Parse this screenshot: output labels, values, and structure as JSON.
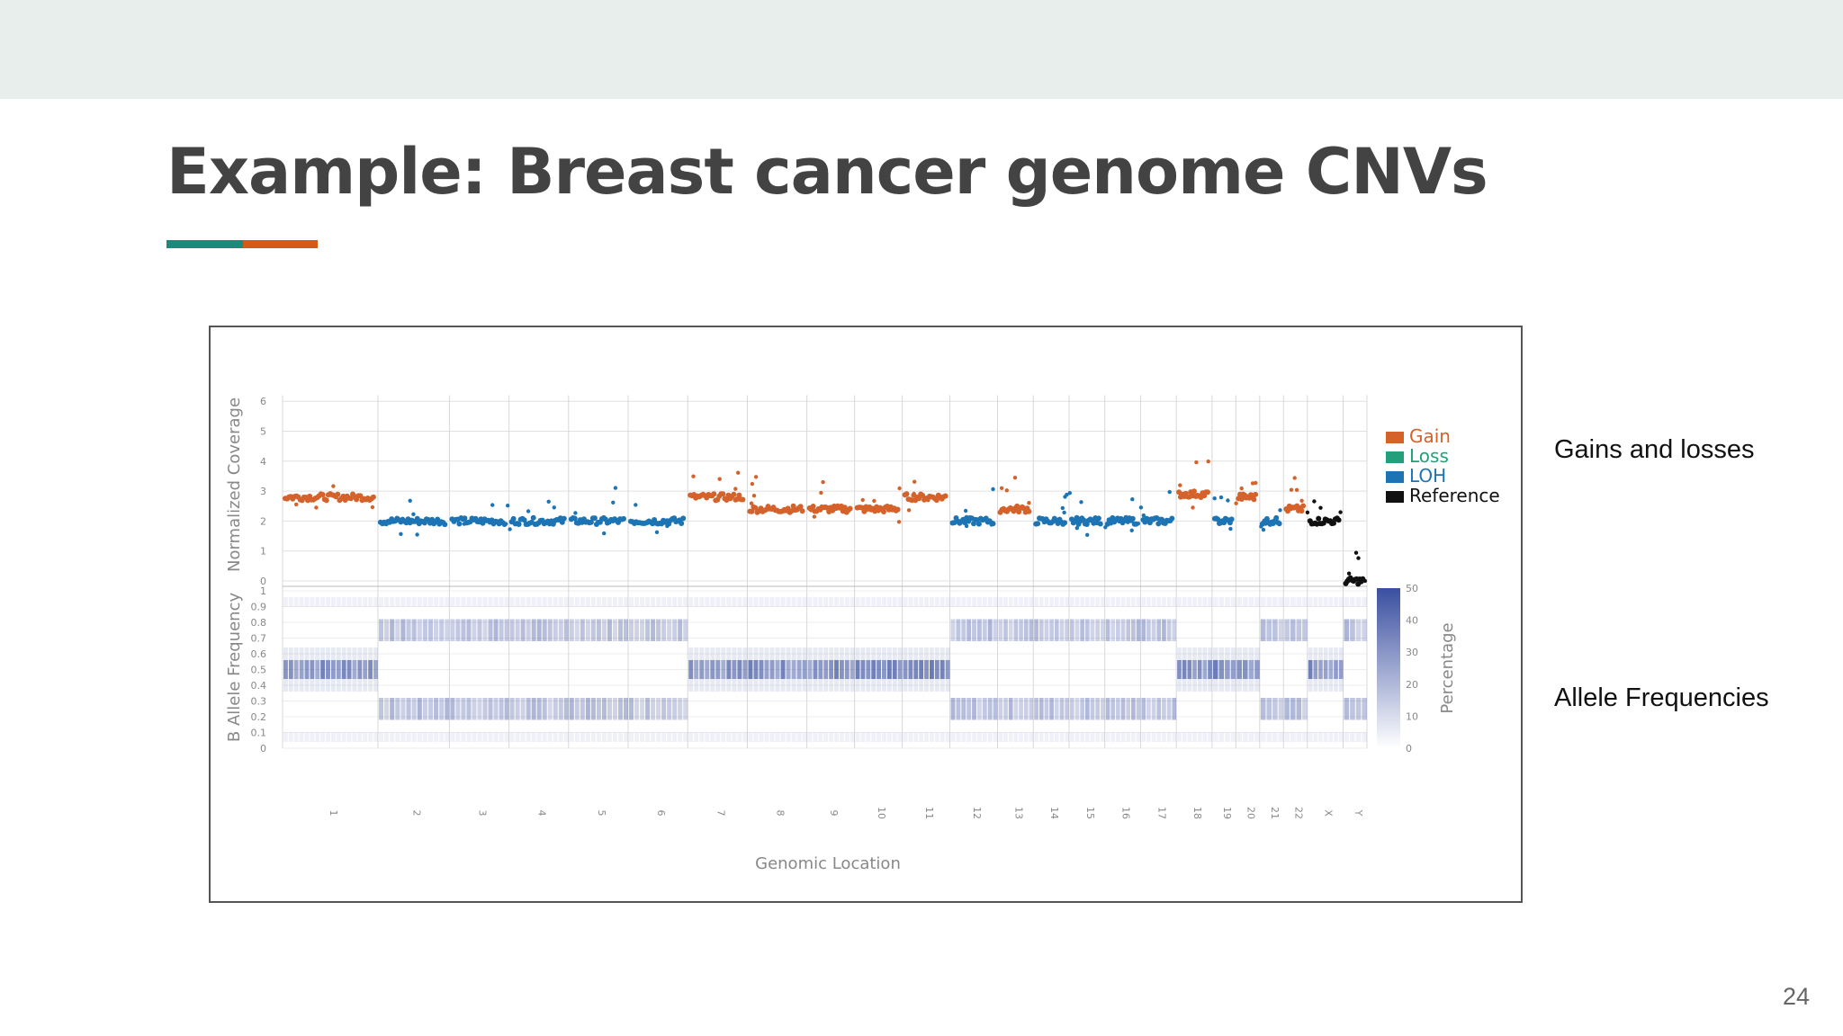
{
  "slide": {
    "title": "Example: Breast cancer genome CNVs",
    "page_number": "24",
    "side_labels": {
      "gains_losses": "Gains and losses",
      "allele_freq": "Allele Frequencies"
    },
    "accent_colors": [
      "#1b8a7a",
      "#d65a17"
    ]
  },
  "chart_data": [
    {
      "type": "scatter",
      "ylabel": "Normalized Coverage",
      "xlabel": "Genomic Location",
      "ylim": [
        0,
        6
      ],
      "yticks": [
        "0",
        "1",
        "2",
        "3",
        "4",
        "5",
        "6"
      ],
      "chromosomes": [
        "1",
        "2",
        "3",
        "4",
        "5",
        "6",
        "7",
        "8",
        "9",
        "10",
        "11",
        "12",
        "13",
        "14",
        "15",
        "16",
        "17",
        "18",
        "19",
        "20",
        "21",
        "22",
        "X",
        "Y"
      ],
      "legend": {
        "placement": "right",
        "entries": [
          {
            "name": "Gain",
            "color": "#d4622a"
          },
          {
            "name": "Loss",
            "color": "#22a07c"
          },
          {
            "name": "LOH",
            "color": "#1c74b4"
          },
          {
            "name": "Reference",
            "color": "#111111"
          }
        ]
      },
      "segments": [
        {
          "chrom": "1",
          "state": "Gain",
          "cn": 2.8
        },
        {
          "chrom": "2",
          "state": "LOH",
          "cn": 2.0
        },
        {
          "chrom": "3",
          "state": "LOH",
          "cn": 2.0
        },
        {
          "chrom": "4",
          "state": "LOH",
          "cn": 2.0
        },
        {
          "chrom": "5",
          "state": "LOH",
          "cn": 2.0
        },
        {
          "chrom": "6",
          "state": "LOH",
          "cn": 2.0
        },
        {
          "chrom": "7",
          "state": "Gain",
          "cn": 2.8
        },
        {
          "chrom": "8",
          "state": "Gain",
          "cn": 2.4
        },
        {
          "chrom": "9",
          "state": "Gain",
          "cn": 2.4
        },
        {
          "chrom": "10",
          "state": "Gain",
          "cn": 2.4
        },
        {
          "chrom": "11",
          "state": "Gain",
          "cn": 2.8
        },
        {
          "chrom": "12",
          "state": "LOH",
          "cn": 2.0
        },
        {
          "chrom": "13",
          "state": "Gain",
          "cn": 2.4
        },
        {
          "chrom": "14",
          "state": "LOH",
          "cn": 2.0
        },
        {
          "chrom": "15",
          "state": "LOH",
          "cn": 2.0
        },
        {
          "chrom": "16",
          "state": "LOH",
          "cn": 2.0
        },
        {
          "chrom": "17",
          "state": "LOH",
          "cn": 2.0
        },
        {
          "chrom": "18",
          "state": "Gain",
          "cn": 2.9
        },
        {
          "chrom": "19",
          "state": "LOH",
          "cn": 2.0
        },
        {
          "chrom": "20",
          "state": "Gain",
          "cn": 2.8
        },
        {
          "chrom": "21",
          "state": "LOH",
          "cn": 2.0
        },
        {
          "chrom": "22",
          "state": "Gain",
          "cn": 2.4
        },
        {
          "chrom": "X",
          "state": "Reference",
          "cn": 2.0
        },
        {
          "chrom": "Y",
          "state": "Reference",
          "cn": 0.0
        }
      ]
    },
    {
      "type": "heatmap",
      "ylabel": "B Allele Frequency",
      "xlabel": "Genomic Location",
      "ylim": [
        0,
        1
      ],
      "yticks": [
        "0",
        "0.1",
        "0.2",
        "0.3",
        "0.4",
        "0.5",
        "0.6",
        "0.7",
        "0.8",
        "0.9",
        "1"
      ],
      "colorbar": {
        "label": "Percentage",
        "ticks": [
          "0",
          "10",
          "20",
          "30",
          "40",
          "50"
        ],
        "color": "#3a4fa0"
      },
      "pattern": [
        {
          "chrom": "1",
          "baf": "0.5"
        },
        {
          "chrom": "2",
          "baf": "0.25/0.75"
        },
        {
          "chrom": "3",
          "baf": "0.25/0.75"
        },
        {
          "chrom": "4",
          "baf": "0.25/0.75"
        },
        {
          "chrom": "5",
          "baf": "0.25/0.75"
        },
        {
          "chrom": "6",
          "baf": "0.25/0.75"
        },
        {
          "chrom": "7",
          "baf": "0.5"
        },
        {
          "chrom": "8",
          "baf": "0.5"
        },
        {
          "chrom": "9",
          "baf": "0.5"
        },
        {
          "chrom": "10",
          "baf": "0.5"
        },
        {
          "chrom": "11",
          "baf": "0.5"
        },
        {
          "chrom": "12",
          "baf": "0.25/0.75"
        },
        {
          "chrom": "13",
          "baf": "0.25/0.75"
        },
        {
          "chrom": "14",
          "baf": "0.25/0.75"
        },
        {
          "chrom": "15",
          "baf": "0.25/0.75"
        },
        {
          "chrom": "16",
          "baf": "0.25/0.75"
        },
        {
          "chrom": "17",
          "baf": "0.25/0.75"
        },
        {
          "chrom": "18",
          "baf": "0.5"
        },
        {
          "chrom": "19",
          "baf": "0.5"
        },
        {
          "chrom": "20",
          "baf": "0.5"
        },
        {
          "chrom": "21",
          "baf": "0.25/0.75"
        },
        {
          "chrom": "22",
          "baf": "0.25/0.75"
        },
        {
          "chrom": "X",
          "baf": "0.5"
        },
        {
          "chrom": "Y",
          "baf": "0.25/0.75"
        }
      ]
    }
  ]
}
